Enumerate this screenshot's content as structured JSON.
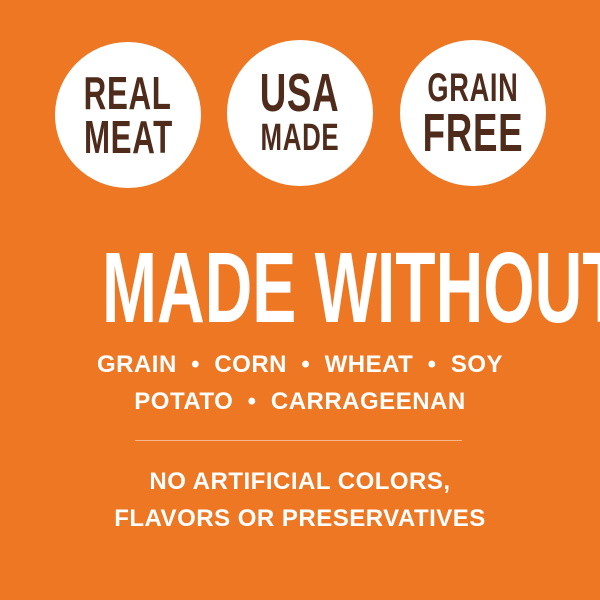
{
  "badges": [
    {
      "line1": "REAL",
      "line2": "MEAT"
    },
    {
      "line1": "USA",
      "line2": "MADE"
    },
    {
      "line1": "GRAIN",
      "line2": "FREE"
    }
  ],
  "headline": "MADE WITHOUT",
  "ingredients_line1": "GRAIN  •  CORN  •  WHEAT  •  SOY",
  "ingredients_line2": "POTATO  •  CARRAGEENAN",
  "note_line1": "NO ARTIFICIAL COLORS,",
  "note_line2": "FLAVORS OR PRESERVATIVES",
  "colors": {
    "background": "#ed7723",
    "badge_text": "#4f2b1b",
    "badge_bg": "#ffffff"
  }
}
